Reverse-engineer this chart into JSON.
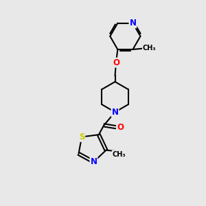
{
  "bg_color": "#e8e8e8",
  "bond_color": "#000000",
  "bond_width": 1.5,
  "atom_colors": {
    "N": "#0000ff",
    "O": "#ff0000",
    "S": "#cccc00",
    "C": "#000000"
  },
  "font_size": 8.5,
  "fig_size": [
    3.0,
    3.0
  ],
  "dpi": 100,
  "xlim": [
    0,
    10
  ],
  "ylim": [
    0,
    10
  ]
}
